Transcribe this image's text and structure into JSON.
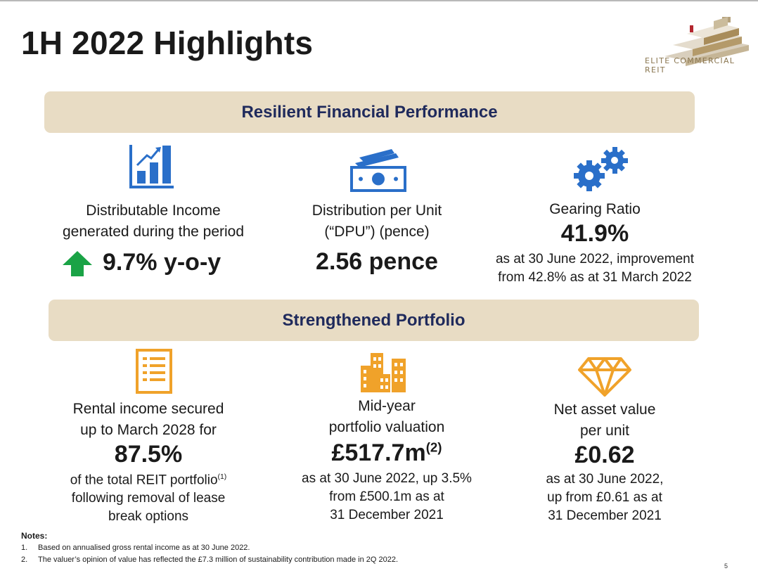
{
  "title": "1H 2022 Highlights",
  "logo": {
    "text": "ELITE COMMERCIAL REIT"
  },
  "colors": {
    "navy": "#1f2a5c",
    "blue_icon": "#2a6fc9",
    "orange_icon": "#f0a22a",
    "banner": "#e8dcc4",
    "arrow_green": "#1aa346"
  },
  "sections": {
    "financial": {
      "heading": "Resilient Financial Performance",
      "cards": [
        {
          "icon": "bar-chart-icon",
          "label1": "Distributable Income",
          "label2": "generated during the period",
          "value": "9.7% y-o-y"
        },
        {
          "icon": "cash-icon",
          "label1": "Distribution per Unit",
          "label2": "(“DPU”) (pence)",
          "value": "2.56 pence"
        },
        {
          "icon": "gears-icon",
          "label1": "Gearing Ratio",
          "value": "41.9%",
          "sub1": "as at 30 June 2022, improvement",
          "sub2": "from 42.8% as at 31 March 2022"
        }
      ]
    },
    "portfolio": {
      "heading": "Strengthened Portfolio",
      "cards": [
        {
          "icon": "document-list-icon",
          "label1": "Rental income secured",
          "label2": "up to March 2028 for",
          "value": "87.5%",
          "sub1": "of the total REIT portfolio",
          "sub1_note": "(1)",
          "sub2": "following removal of lease",
          "sub3": "break options"
        },
        {
          "icon": "buildings-icon",
          "label1": "Mid-year",
          "label2": "portfolio valuation",
          "value": "£517.7m",
          "value_note": "(2)",
          "sub1": "as at 30 June 2022, up 3.5%",
          "sub2": "from £500.1m as at",
          "sub3": "31 December 2021"
        },
        {
          "icon": "diamond-icon",
          "label1": "Net asset value",
          "label2": "per unit",
          "value": "£0.62",
          "sub1": "as at 30 June 2022,",
          "sub2": "up from £0.61 as at",
          "sub3": "31 December 2021"
        }
      ]
    }
  },
  "notes": {
    "heading": "Notes:",
    "items": [
      {
        "num": "1.",
        "text": "Based on annualised gross rental income as at 30 June 2022."
      },
      {
        "num": "2.",
        "text": "The valuer’s opinion of value has reflected the £7.3 million of sustainability contribution made in 2Q 2022."
      }
    ]
  },
  "page_number": "5"
}
